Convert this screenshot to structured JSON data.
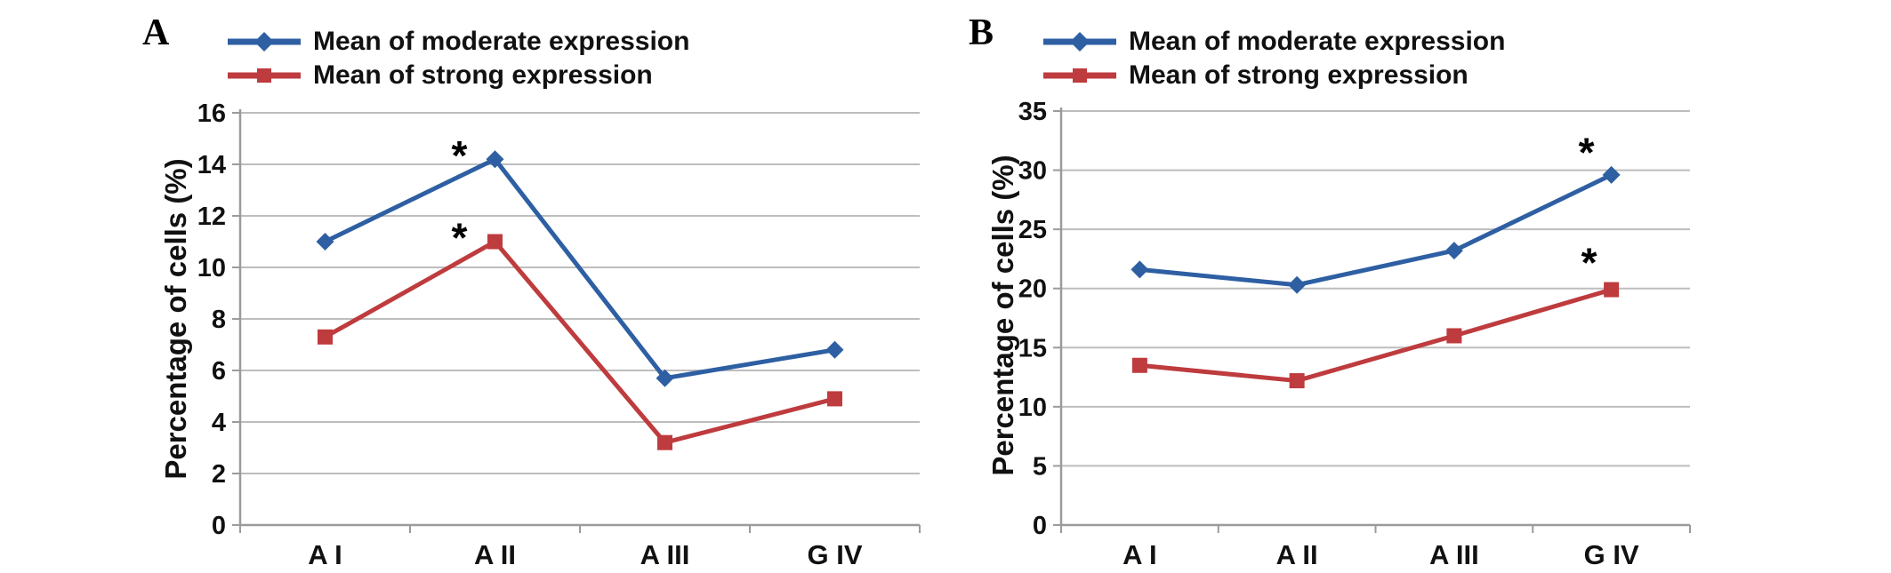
{
  "figure": {
    "panels": [
      {
        "label": "A"
      },
      {
        "label": "B"
      }
    ]
  },
  "chart_data": [
    {
      "type": "line",
      "title": "",
      "categories": [
        "A I",
        "A II",
        "A III",
        "G IV"
      ],
      "series": [
        {
          "name": "Mean of moderate expression",
          "color": "#2E5FA3",
          "marker": "diamond",
          "values": [
            11.0,
            14.2,
            5.7,
            6.8
          ]
        },
        {
          "name": "Mean of strong expression",
          "color": "#BE3B3E",
          "marker": "square",
          "values": [
            7.3,
            11.0,
            3.2,
            4.9
          ]
        }
      ],
      "xlabel": "",
      "ylabel": "Percentage of cells (%)",
      "ylim": [
        0,
        16
      ],
      "ystep": 2,
      "grid": true,
      "legend_position": "top",
      "annotations": [
        {
          "text": "*",
          "category": "A II",
          "y": 13.8,
          "dx": -40
        },
        {
          "text": "*",
          "category": "A II",
          "y": 10.6,
          "dx": -40
        }
      ]
    },
    {
      "type": "line",
      "title": "",
      "categories": [
        "A I",
        "A II",
        "A III",
        "G IV"
      ],
      "series": [
        {
          "name": "Mean of moderate expression",
          "color": "#2E5FA3",
          "marker": "diamond",
          "values": [
            21.6,
            20.3,
            23.2,
            29.6
          ]
        },
        {
          "name": "Mean of strong expression",
          "color": "#BE3B3E",
          "marker": "square",
          "values": [
            13.5,
            12.2,
            16.0,
            19.9
          ]
        }
      ],
      "xlabel": "",
      "ylabel": "Percentage of cells (%)",
      "ylim": [
        0,
        35
      ],
      "ystep": 5,
      "grid": true,
      "legend_position": "top",
      "annotations": [
        {
          "text": "*",
          "category": "G IV",
          "y": 30.3,
          "dx": -28
        },
        {
          "text": "*",
          "category": "G IV",
          "y": 21.0,
          "dx": -25
        }
      ]
    }
  ],
  "style": {
    "gridline_color": "#bdbdbd",
    "axis_color": "#9b9b9b",
    "text_color": "#111111",
    "background": "#ffffff"
  }
}
